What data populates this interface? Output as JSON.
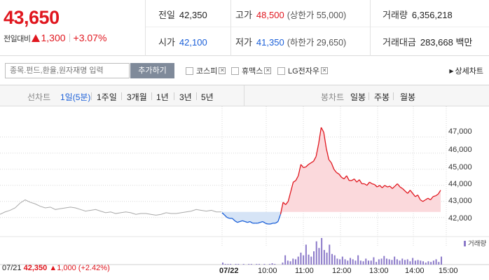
{
  "quote": {
    "price": "43,650",
    "diff_label": "전일대비",
    "change": "1,300",
    "change_pct": "+3.07%"
  },
  "stats": {
    "prev_close": {
      "label": "전일",
      "value": "42,350"
    },
    "open": {
      "label": "시가",
      "value": "42,100"
    },
    "high": {
      "label": "고가",
      "value": "48,500",
      "sub": "(상한가 55,000)"
    },
    "low": {
      "label": "저가",
      "value": "41,350",
      "sub": "(하한가 29,650)"
    },
    "volume": {
      "label": "거래량",
      "value": "6,356,218"
    },
    "trade_value": {
      "label": "거래대금",
      "value": "283,668 백만"
    }
  },
  "search": {
    "placeholder": "종목.펀드,환율,원자재명 입력",
    "add_label": "추가하기",
    "compare_items": [
      "코스피",
      "휴맥스",
      "LG전자우"
    ],
    "detail_link": "상세차트"
  },
  "tabs": {
    "line_group_label": "선차트",
    "line_tabs": [
      "1일(5분)",
      "1주일",
      "3개월",
      "1년",
      "3년",
      "5년"
    ],
    "active_line_tab": "1일(5분)",
    "candle_group_label": "봉차트",
    "candle_tabs": [
      "일봉",
      "주봉",
      "월봉"
    ]
  },
  "chart_labels": {
    "y_ticks": [
      "47,000",
      "46,000",
      "45,000",
      "44,000",
      "43,000",
      "42,000"
    ],
    "x_ticks": [
      "07/22",
      "10:00",
      "11:00",
      "12:00",
      "13:00",
      "14:00",
      "15:00"
    ],
    "volume_legend": "거래량",
    "prev_day": {
      "date": "07/21",
      "price": "42,350",
      "change": "1,000",
      "pct": "(+2.42%)"
    }
  },
  "colors": {
    "up": "#e0161e",
    "down": "#1a5fd8",
    "prev_line": "#a9a9a9",
    "volume": "#8b79c9"
  },
  "chart_data": {
    "type": "line",
    "prev_close": 42350,
    "ylim": [
      41600,
      47600
    ],
    "prev_day_series": [
      42200,
      42350,
      42450,
      42600,
      42900,
      43100,
      42950,
      42850,
      42700,
      42600,
      42650,
      42500,
      42550,
      42600,
      42650,
      42600,
      42500,
      42400,
      42450,
      42500,
      42400,
      42300,
      42350,
      42250,
      42300,
      42350,
      42300,
      42200,
      42250,
      42250,
      42200,
      42150,
      42200,
      42300,
      42250,
      42250,
      42300,
      42350,
      42400,
      42500,
      42450,
      42400,
      42450,
      42350,
      42350
    ],
    "today_series": [
      42300,
      42150,
      42000,
      41950,
      41950,
      41800,
      41700,
      41750,
      41800,
      41750,
      41700,
      41750,
      41650,
      41650,
      41650,
      41700,
      41750,
      41650,
      41600,
      41600,
      41650,
      41650,
      41750,
      42200,
      42950,
      42800,
      43000,
      43600,
      44200,
      44300,
      44600,
      45300,
      45100,
      45150,
      45300,
      45400,
      45500,
      45800,
      46600,
      47600,
      47300,
      46300,
      45600,
      45400,
      45000,
      44800,
      44700,
      44500,
      44400,
      44600,
      44300,
      44300,
      44400,
      44200,
      44350,
      44100,
      44100,
      44000,
      44200,
      44100,
      44050,
      43900,
      44000,
      43850,
      44000,
      43900,
      43950,
      43800,
      43950,
      44100,
      43900,
      43800,
      43650,
      43500,
      43700,
      43500,
      43300,
      43400,
      43100,
      43000,
      43100,
      43200,
      43100,
      43300,
      43350,
      43450,
      43700
    ],
    "volume": [
      0,
      0,
      0,
      0,
      0,
      0,
      0,
      0,
      0,
      0,
      0,
      0,
      0,
      0,
      0,
      0,
      0,
      0,
      0,
      0,
      0,
      0,
      0,
      0,
      0,
      0,
      0,
      0,
      0,
      0,
      0,
      0,
      0,
      0,
      0,
      0,
      0,
      0,
      0,
      0,
      0,
      0,
      0,
      0,
      0,
      3,
      1,
      1,
      1,
      0,
      1,
      1,
      0,
      1,
      0,
      1,
      1,
      0,
      1,
      1,
      0,
      1,
      0,
      1,
      2,
      1,
      0,
      0,
      3,
      14,
      6,
      5,
      9,
      8,
      12,
      18,
      14,
      30,
      15,
      12,
      20,
      35,
      25,
      40,
      22,
      18,
      30,
      16,
      14,
      9,
      8,
      12,
      8,
      6,
      10,
      8,
      6,
      14,
      6,
      5,
      9,
      6,
      6,
      11,
      4,
      8,
      9,
      13,
      9,
      8,
      7,
      12,
      8,
      6,
      9,
      7,
      8,
      5,
      10,
      6,
      7,
      6,
      5,
      3,
      5,
      4,
      6,
      8,
      4,
      12
    ]
  }
}
